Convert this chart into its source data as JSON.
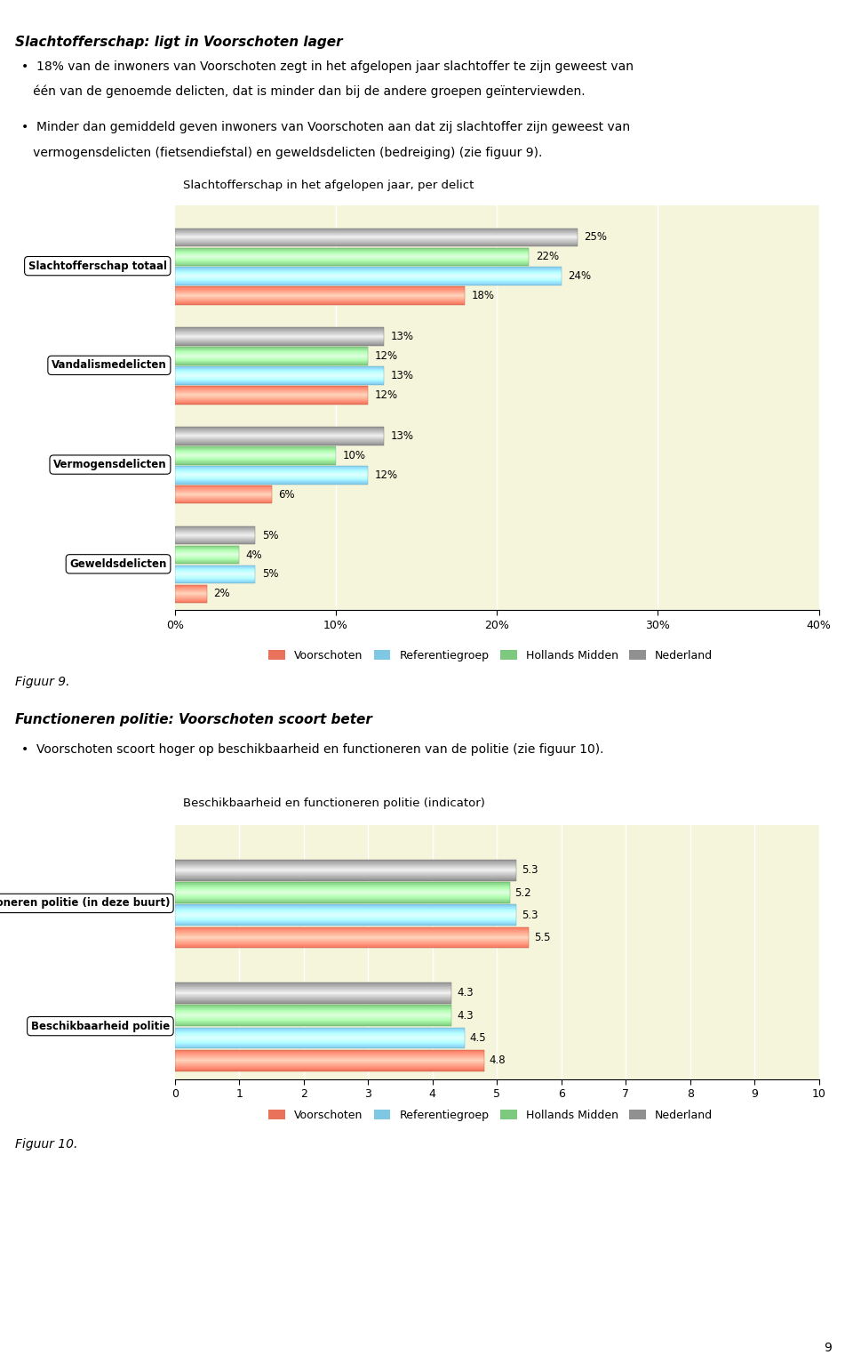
{
  "page_title1": "Slachtofferschap: ligt in Voorschoten lager",
  "bullet1": "18% van de inwoners van Voorschoten zegt in het afgelopen jaar slachtoffer te zijn geweest van\néén van de genoemde delicten, dat is minder dan bij de andere groepen geïnterviewden.",
  "bullet2": "Minder dan gemiddeld geven inwoners van Voorschoten aan dat zij slachtoffer zijn geweest van\nvermogensdelicten (fietsendiefstal) en geweldsdelicten (bedreiging) (zie figuur 9).",
  "chart1_title": "Slachtofferschap in het afgelopen jaar, per delict",
  "chart1_categories": [
    "Geweldsdelicten",
    "Vermogensdelicten",
    "Vandalismedelicten",
    "Slachtofferschap totaal"
  ],
  "chart1_data": {
    "Voorschoten": [
      2,
      6,
      12,
      18
    ],
    "Referentiegroep": [
      5,
      12,
      13,
      24
    ],
    "Hollands Midden": [
      4,
      10,
      12,
      22
    ],
    "Nederland": [
      5,
      13,
      13,
      25
    ]
  },
  "chart1_xlim": [
    0,
    40
  ],
  "chart1_xticks": [
    0,
    10,
    20,
    30,
    40
  ],
  "chart1_xtick_labels": [
    "0%",
    "10%",
    "20%",
    "30%",
    "40%"
  ],
  "figuur9_label": "Figuur 9.",
  "section2_title": "Functioneren politie: Voorschoten scoort beter",
  "bullet3": "Voorschoten scoort hoger op beschikbaarheid en functioneren van de politie (zie figuur 10).",
  "chart2_title": "Beschikbaarheid en functioneren politie (indicator)",
  "chart2_categories": [
    "Beschikbaarheid politie",
    "Functioneren politie (in deze buurt)"
  ],
  "chart2_data": {
    "Voorschoten": [
      4.8,
      5.5
    ],
    "Referentiegroep": [
      4.5,
      5.3
    ],
    "Hollands Midden": [
      4.3,
      5.2
    ],
    "Nederland": [
      4.3,
      5.3
    ]
  },
  "chart2_xlim": [
    0,
    10
  ],
  "chart2_xticks": [
    0,
    1,
    2,
    3,
    4,
    5,
    6,
    7,
    8,
    9,
    10
  ],
  "figuur10_label": "Figuur 10.",
  "page_number": "9",
  "colors": {
    "Voorschoten": "#E8735A",
    "Referentiegroep": "#7EC8E3",
    "Hollands Midden": "#7DC97D",
    "Nederland": "#909090"
  },
  "legend_labels": [
    "Voorschoten",
    "Referentiegroep",
    "Hollands Midden",
    "Nederland"
  ],
  "bg_color": "#F5F5DC"
}
